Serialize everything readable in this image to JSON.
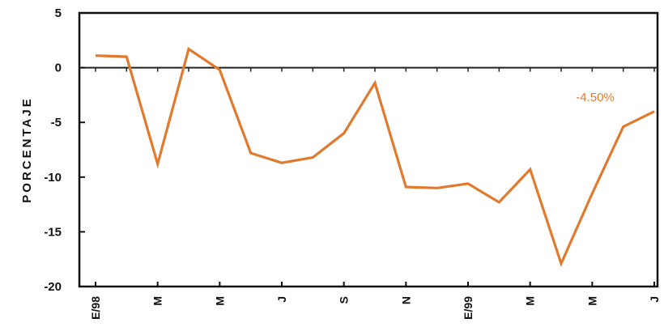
{
  "chart_data": {
    "type": "line",
    "title": "",
    "xlabel": "",
    "ylabel": "PORCENTAJE",
    "ylim": [
      -20,
      5
    ],
    "yticks": [
      5,
      0,
      -5,
      -10,
      -15,
      -20
    ],
    "xtick_labels": [
      "E/98",
      "M",
      "M",
      "J",
      "S",
      "N",
      "E/99",
      "M",
      "M",
      "J"
    ],
    "series": [
      {
        "color": "#e07a2e",
        "values": [
          1.1,
          1.0,
          -8.8,
          1.7,
          -0.2,
          -7.8,
          -8.7,
          -8.2,
          -6.0,
          -1.4,
          -10.9,
          -11.0,
          -10.6,
          -12.3,
          -9.3,
          -17.9,
          -11.5,
          -5.4,
          -4.0
        ]
      }
    ],
    "annotations": [
      {
        "text": "-4.50%",
        "color": "#e07a2e"
      }
    ],
    "grid": false,
    "zero_line": true
  }
}
